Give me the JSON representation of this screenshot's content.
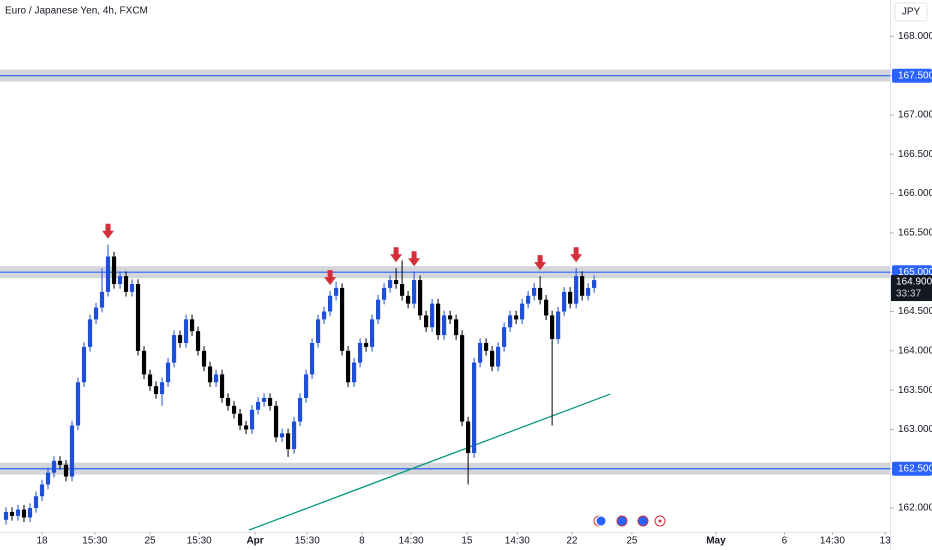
{
  "chart_data": {
    "type": "candlestick",
    "title": "Euro / Japanese Yen, 4h, FXCM",
    "currency": "JPY",
    "up_color": "#1e4fd8",
    "down_color": "#000000",
    "open": [
      161.85,
      161.95,
      161.9,
      161.98,
      161.88,
      162.0,
      162.15,
      162.3,
      162.45,
      162.6,
      162.55,
      162.4,
      163.05,
      163.6,
      164.05,
      164.4,
      164.55,
      164.75,
      165.2,
      164.85,
      164.95,
      164.75,
      164.85,
      164.0,
      163.7,
      163.55,
      163.45,
      163.6,
      163.85,
      164.2,
      164.1,
      164.4,
      164.25,
      164.0,
      163.8,
      163.6,
      163.7,
      163.4,
      163.3,
      163.2,
      163.05,
      163.0,
      163.25,
      163.35,
      163.4,
      163.3,
      162.9,
      162.95,
      162.75,
      163.1,
      163.4,
      163.7,
      164.1,
      164.4,
      164.5,
      164.7,
      164.8,
      164.0,
      163.6,
      163.85,
      164.1,
      164.05,
      164.4,
      164.65,
      164.8,
      164.9,
      164.85,
      164.7,
      164.6,
      164.9,
      164.45,
      164.3,
      164.6,
      164.2,
      164.45,
      164.4,
      164.2,
      163.1,
      162.7,
      163.85,
      164.1,
      164.0,
      163.8,
      164.05,
      164.3,
      164.45,
      164.4,
      164.6,
      164.7,
      164.8,
      164.65,
      164.45,
      164.15,
      164.5,
      164.75,
      164.6,
      164.95,
      164.7,
      164.8
    ],
    "high": [
      162.01,
      162.01,
      162.04,
      162.04,
      162.06,
      162.21,
      162.36,
      162.51,
      162.66,
      162.66,
      162.61,
      163.11,
      163.66,
      164.11,
      164.46,
      164.61,
      165.05,
      165.35,
      165.26,
      165.01,
      165.01,
      164.91,
      164.91,
      164.06,
      163.76,
      163.61,
      163.66,
      163.91,
      164.26,
      164.26,
      164.46,
      164.46,
      164.31,
      164.06,
      163.86,
      163.76,
      163.76,
      163.46,
      163.36,
      163.26,
      163.11,
      163.31,
      163.41,
      163.46,
      163.46,
      163.36,
      163.01,
      163.01,
      163.16,
      163.46,
      163.76,
      164.16,
      164.46,
      164.56,
      164.76,
      164.88,
      164.86,
      164.06,
      163.91,
      164.16,
      164.16,
      164.46,
      164.71,
      164.86,
      164.96,
      165.05,
      165.15,
      164.76,
      165.0,
      164.96,
      164.51,
      164.66,
      164.66,
      164.51,
      164.51,
      164.46,
      164.26,
      163.16,
      163.91,
      164.16,
      164.16,
      164.06,
      164.11,
      164.36,
      164.51,
      164.51,
      164.66,
      164.76,
      164.86,
      164.95,
      164.71,
      164.51,
      164.56,
      164.81,
      164.81,
      165.05,
      165.01,
      164.86,
      164.96
    ],
    "low": [
      161.79,
      161.84,
      161.84,
      161.82,
      161.82,
      161.94,
      162.09,
      162.24,
      162.39,
      162.49,
      162.34,
      162.34,
      162.99,
      163.54,
      163.99,
      164.34,
      164.49,
      164.69,
      164.79,
      164.79,
      164.69,
      164.69,
      163.94,
      163.64,
      163.49,
      163.39,
      163.3,
      163.54,
      163.79,
      164.04,
      164.04,
      164.19,
      163.94,
      163.74,
      163.54,
      163.54,
      163.34,
      163.24,
      163.14,
      162.99,
      162.94,
      162.94,
      163.19,
      163.29,
      163.24,
      162.84,
      162.84,
      162.65,
      162.69,
      163.04,
      163.34,
      163.64,
      164.04,
      164.34,
      164.44,
      164.64,
      163.94,
      163.54,
      163.54,
      163.79,
      163.99,
      163.99,
      164.34,
      164.59,
      164.74,
      164.79,
      164.64,
      164.54,
      164.54,
      164.39,
      164.24,
      164.24,
      164.14,
      164.14,
      164.34,
      164.14,
      163.04,
      162.3,
      162.64,
      163.79,
      163.94,
      163.74,
      163.74,
      163.99,
      164.24,
      164.34,
      164.34,
      164.54,
      164.64,
      164.59,
      164.39,
      163.05,
      164.09,
      164.44,
      164.54,
      164.54,
      164.64,
      164.64,
      164.74
    ],
    "close": [
      161.95,
      161.9,
      161.98,
      161.88,
      162.0,
      162.15,
      162.3,
      162.45,
      162.6,
      162.55,
      162.4,
      163.05,
      163.6,
      164.05,
      164.4,
      164.55,
      164.75,
      165.2,
      164.85,
      164.95,
      164.75,
      164.85,
      164.0,
      163.7,
      163.55,
      163.45,
      163.6,
      163.85,
      164.2,
      164.1,
      164.4,
      164.25,
      164.0,
      163.8,
      163.6,
      163.7,
      163.4,
      163.3,
      163.2,
      163.05,
      163.0,
      163.25,
      163.35,
      163.4,
      163.3,
      162.9,
      162.95,
      162.75,
      163.1,
      163.4,
      163.7,
      164.1,
      164.4,
      164.5,
      164.7,
      164.8,
      164.0,
      163.6,
      163.85,
      164.1,
      164.05,
      164.4,
      164.65,
      164.8,
      164.9,
      164.85,
      164.7,
      164.6,
      164.9,
      164.45,
      164.3,
      164.6,
      164.2,
      164.45,
      164.4,
      164.2,
      163.1,
      162.7,
      163.85,
      164.1,
      164.0,
      163.8,
      164.05,
      164.3,
      164.45,
      164.4,
      164.6,
      164.7,
      164.8,
      164.65,
      164.45,
      164.15,
      164.5,
      164.75,
      164.6,
      164.95,
      164.7,
      164.8,
      164.9
    ],
    "xlim": [
      -1,
      147.3
    ],
    "xticks": [
      {
        "value": 6,
        "label": "18"
      },
      {
        "value": 14.8,
        "label": "15:30"
      },
      {
        "value": 24,
        "label": "25"
      },
      {
        "value": 32.2,
        "label": "15:30"
      },
      {
        "value": 41.5,
        "label": "Apr"
      },
      {
        "value": 50.2,
        "label": "15:30"
      },
      {
        "value": 59.3,
        "label": "8"
      },
      {
        "value": 67.5,
        "label": "14:30"
      },
      {
        "value": 76.8,
        "label": "15"
      },
      {
        "value": 85.2,
        "label": "14:30"
      },
      {
        "value": 94.3,
        "label": "22"
      },
      {
        "value": 104.3,
        "label": "25"
      },
      {
        "value": 118.3,
        "label": "May"
      },
      {
        "value": 129.7,
        "label": "6"
      },
      {
        "value": 137.7,
        "label": "14:30"
      },
      {
        "value": 146.5,
        "label": "13"
      }
    ],
    "ylim": [
      161.695,
      168.463
    ],
    "yticks": [
      {
        "value": 162,
        "label": "162.000"
      },
      {
        "value": 162.5,
        "label": "162.500"
      },
      {
        "value": 163,
        "label": "163.000"
      },
      {
        "value": 163.5,
        "label": "163.500"
      },
      {
        "value": 164,
        "label": "164.000"
      },
      {
        "value": 164.5,
        "label": "164.500"
      },
      {
        "value": 165,
        "label": "165.000"
      },
      {
        "value": 165.5,
        "label": "165.500"
      },
      {
        "value": 166,
        "label": "166.000"
      },
      {
        "value": 166.5,
        "label": "166.500"
      },
      {
        "value": 167,
        "label": "167.000"
      },
      {
        "value": 167.5,
        "label": "167.500"
      },
      {
        "value": 168,
        "label": "168.000"
      }
    ],
    "zone_levels": [
      167.5,
      165,
      162.5
    ],
    "zone_color": "#2962ff",
    "arrows": [
      17,
      54,
      65,
      68,
      89,
      95
    ],
    "arrow_color": "#d32f3a",
    "trendline": {
      "x": [
        40.5,
        100.7
      ],
      "y": [
        161.72,
        163.45
      ],
      "color": "#089981"
    },
    "last_price": {
      "value": 164.9,
      "label": "164.900"
    },
    "countdown": "33:37"
  }
}
